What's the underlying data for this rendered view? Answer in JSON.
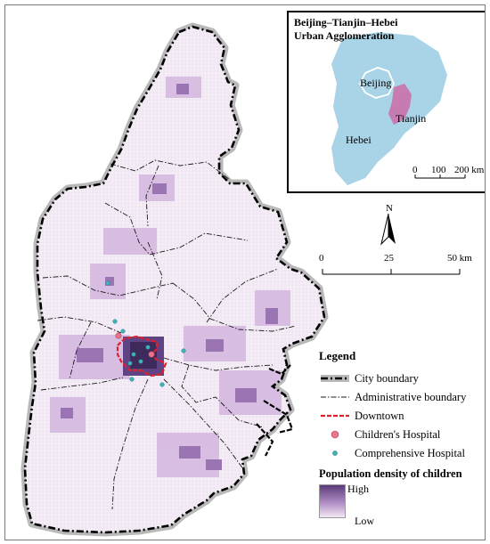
{
  "inset": {
    "title_line1": "Beijing–Tianjin–Hebei",
    "title_line2": "Urban Agglomeration",
    "labels": {
      "beijing": "Beijing",
      "tianjin": "Tianjin",
      "hebei": "Hebei"
    },
    "scale": {
      "tick0": "0",
      "tick1": "100",
      "tick2": "200 km"
    },
    "colors": {
      "hebei": "#a9d3e6",
      "tianjin": "#c77bb0",
      "beijing_outline": "#ffffff"
    }
  },
  "north_arrow": {
    "label": "N"
  },
  "scale_bar": {
    "tick0": "0",
    "tick1": "25",
    "tick2": "50 km"
  },
  "legend": {
    "title": "Legend",
    "items": [
      {
        "label": "City boundary",
        "symbol": "city-boundary"
      },
      {
        "label": "Administrative boundary",
        "symbol": "administrative-boundary"
      },
      {
        "label": "Downtown",
        "symbol": "downtown"
      },
      {
        "label": "Children's Hospital",
        "symbol": "childrens-hospital"
      },
      {
        "label": "Comprehensive Hospital",
        "symbol": "comprehensive-hospital"
      }
    ],
    "density_title": "Population density of children",
    "density_high": "High",
    "density_low": "Low"
  },
  "colors": {
    "density_light": "#efe3f1",
    "density_mid": "#c9a6d6",
    "density_dark": "#5a3a7a",
    "downtown": "#e0202a",
    "childrens_hospital": "#e8758c",
    "comprehensive_hospital": "#3fb3b8",
    "city_boundary": "#000000"
  }
}
